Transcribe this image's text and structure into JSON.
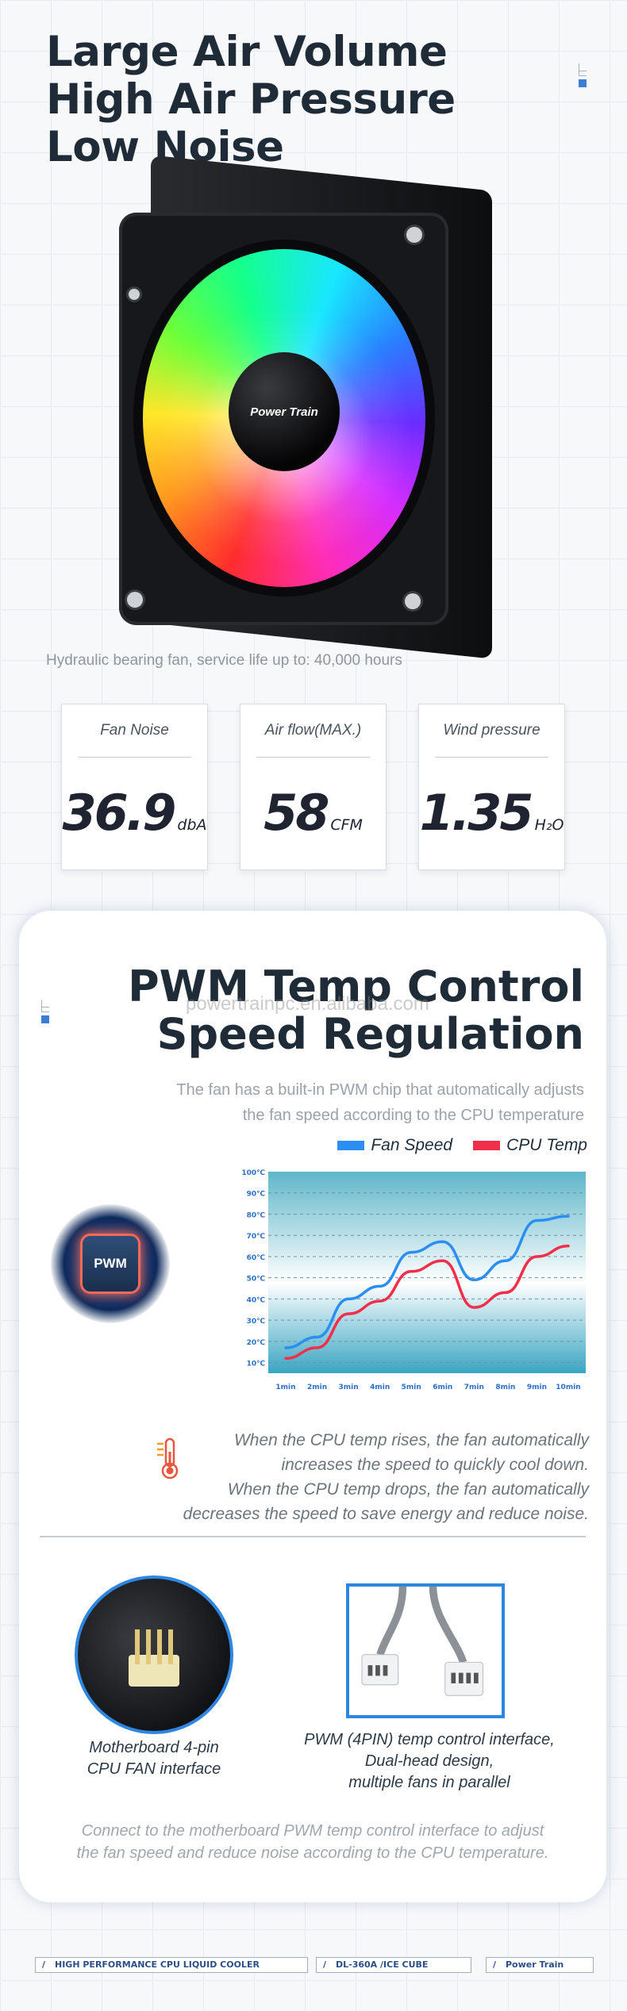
{
  "hero": {
    "title_lines": [
      "Large Air Volume",
      "High Air Pressure",
      "Low Noise"
    ],
    "hub_logo": "Power Train",
    "caption": "Hydraulic bearing fan, service life up to: 40,000 hours"
  },
  "specs": [
    {
      "label": "Fan Noise",
      "value": "36.9",
      "unit": "dbA"
    },
    {
      "label": "Air flow(MAX.)",
      "value": "58",
      "unit": "CFM"
    },
    {
      "label": "Wind pressure",
      "value": "1.35",
      "unit": "H₂O"
    }
  ],
  "pwm": {
    "title_lines": [
      "PWM Temp Control",
      "Speed Regulation"
    ],
    "watermark": "powertrainpc.en.alibaba.com",
    "description_lines": [
      "The fan has a built-in PWM chip that automatically adjusts",
      "the fan speed according to the CPU temperature"
    ],
    "chip_label": "PWM",
    "cpu_note_lines": [
      "When the CPU temp rises, the fan automatically",
      "increases the speed to quickly cool down.",
      "When the CPU temp drops, the fan automatically",
      "decreases the speed to save energy and reduce noise."
    ],
    "header_caption_lines": [
      "Motherboard 4-pin",
      "CPU FAN interface"
    ],
    "cable_caption_lines": [
      "PWM (4PIN) temp control interface,",
      "Dual-head design,",
      "multiple fans in parallel"
    ],
    "bottom_note_lines": [
      "Connect to the motherboard PWM temp control interface to adjust",
      "the fan speed and reduce noise according to the CPU temperature."
    ]
  },
  "chart_data": {
    "type": "line",
    "title": "",
    "xlabel": "",
    "ylabel": "",
    "x": [
      "1min",
      "2min",
      "3min",
      "4min",
      "5min",
      "6min",
      "7min",
      "8min",
      "9min",
      "10min"
    ],
    "y_ticks": [
      "10℃",
      "20℃",
      "30℃",
      "40℃",
      "50℃",
      "60℃",
      "70℃",
      "80℃",
      "90℃",
      "100℃"
    ],
    "ylim": [
      5,
      100
    ],
    "legend_position": "top-right",
    "grid": true,
    "series": [
      {
        "name": "Fan Speed",
        "color": "#2b8ef2",
        "values": [
          17,
          22,
          40,
          46,
          62,
          67,
          49,
          58,
          77,
          79
        ]
      },
      {
        "name": "CPU Temp",
        "color": "#f0304a",
        "values": [
          12,
          17,
          33,
          39,
          53,
          58,
          36,
          43,
          60,
          65
        ]
      }
    ]
  },
  "footer": [
    "HIGH PERFORMANCE CPU LIQUID COOLER",
    "DL-360A /ICE CUBE",
    "Power Train"
  ],
  "colors": {
    "accent": "#3a7fd4",
    "fan_speed": "#2b8ef2",
    "cpu_temp": "#f0304a"
  }
}
